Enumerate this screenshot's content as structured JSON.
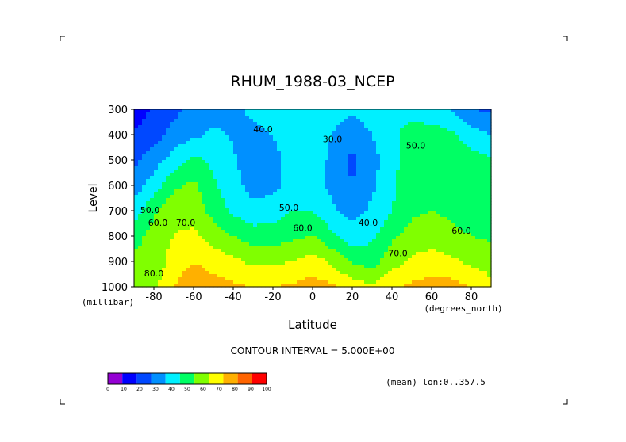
{
  "chart_data": {
    "type": "contour",
    "title": "RHUM_1988-03_NCEP",
    "xlabel": "Latitude",
    "ylabel": "Level",
    "x_unit": "(degrees_north)",
    "y_unit": "(millibar)",
    "xlim": [
      -90,
      90
    ],
    "ylim": [
      1000,
      300
    ],
    "x_ticks": [
      -80,
      -60,
      -40,
      -20,
      0,
      20,
      40,
      60,
      80
    ],
    "y_ticks": [
      300,
      400,
      500,
      600,
      700,
      800,
      900,
      1000
    ],
    "contour_interval_text": "CONTOUR INTERVAL = 5.000E+00",
    "footnote": "(mean) lon:0..357.5",
    "colorbar": {
      "labels": [
        "0",
        "10",
        "20",
        "30",
        "40",
        "50",
        "60",
        "70",
        "80",
        "90",
        "100"
      ],
      "colors": [
        "#9400d3",
        "#0000ff",
        "#0048ff",
        "#0090ff",
        "#00f0ff",
        "#00ff64",
        "#80ff00",
        "#ffff00",
        "#ffb000",
        "#ff6400",
        "#ff0000"
      ]
    },
    "levels": [
      300,
      400,
      500,
      600,
      700,
      800,
      900,
      1000
    ],
    "latitudes": [
      -90,
      -80,
      -70,
      -60,
      -50,
      -40,
      -30,
      -20,
      -10,
      0,
      10,
      20,
      30,
      40,
      50,
      60,
      70,
      80,
      90
    ],
    "values": [
      [
        12,
        22,
        28,
        32,
        35,
        38,
        42,
        45,
        48,
        47,
        44,
        42,
        45,
        50,
        47,
        44,
        40,
        30,
        28
      ],
      [
        22,
        26,
        33,
        38,
        42,
        39,
        37,
        40,
        46,
        49,
        40,
        34,
        40,
        48,
        53,
        54,
        52,
        44,
        40
      ],
      [
        28,
        35,
        45,
        52,
        48,
        41,
        35,
        37,
        44,
        47,
        37,
        28,
        36,
        47,
        56,
        58,
        57,
        55,
        51
      ],
      [
        34,
        45,
        58,
        62,
        52,
        44,
        36,
        37,
        43,
        46,
        37,
        30,
        38,
        48,
        56,
        58,
        57,
        55,
        52
      ],
      [
        45,
        58,
        68,
        66,
        56,
        48,
        43,
        45,
        50,
        50,
        42,
        36,
        42,
        50,
        58,
        60,
        58,
        57,
        55
      ],
      [
        55,
        65,
        70,
        72,
        66,
        60,
        55,
        55,
        58,
        60,
        52,
        44,
        48,
        58,
        64,
        66,
        62,
        60,
        58
      ],
      [
        65,
        62,
        76,
        80,
        76,
        72,
        68,
        68,
        70,
        74,
        68,
        58,
        56,
        66,
        72,
        74,
        72,
        68,
        66
      ],
      [
        70,
        68,
        80,
        86,
        84,
        82,
        80,
        80,
        82,
        84,
        82,
        75,
        72,
        78,
        82,
        84,
        84,
        80,
        72
      ]
    ],
    "annotations": [
      {
        "text": "40.0",
        "x": -25,
        "y": 390
      },
      {
        "text": "30.0",
        "x": 10,
        "y": 430
      },
      {
        "text": "50.0",
        "x": 52,
        "y": 455
      },
      {
        "text": "50.0",
        "x": -82,
        "y": 710
      },
      {
        "text": "60.0",
        "x": -78,
        "y": 760
      },
      {
        "text": "70.0",
        "x": -64,
        "y": 760
      },
      {
        "text": "50.0",
        "x": -12,
        "y": 700
      },
      {
        "text": "60.0",
        "x": -5,
        "y": 780
      },
      {
        "text": "40.0",
        "x": 28,
        "y": 760
      },
      {
        "text": "60.0",
        "x": 75,
        "y": 790
      },
      {
        "text": "70.0",
        "x": 43,
        "y": 880
      },
      {
        "text": "80.0",
        "x": -80,
        "y": 960
      }
    ],
    "grid": false
  }
}
